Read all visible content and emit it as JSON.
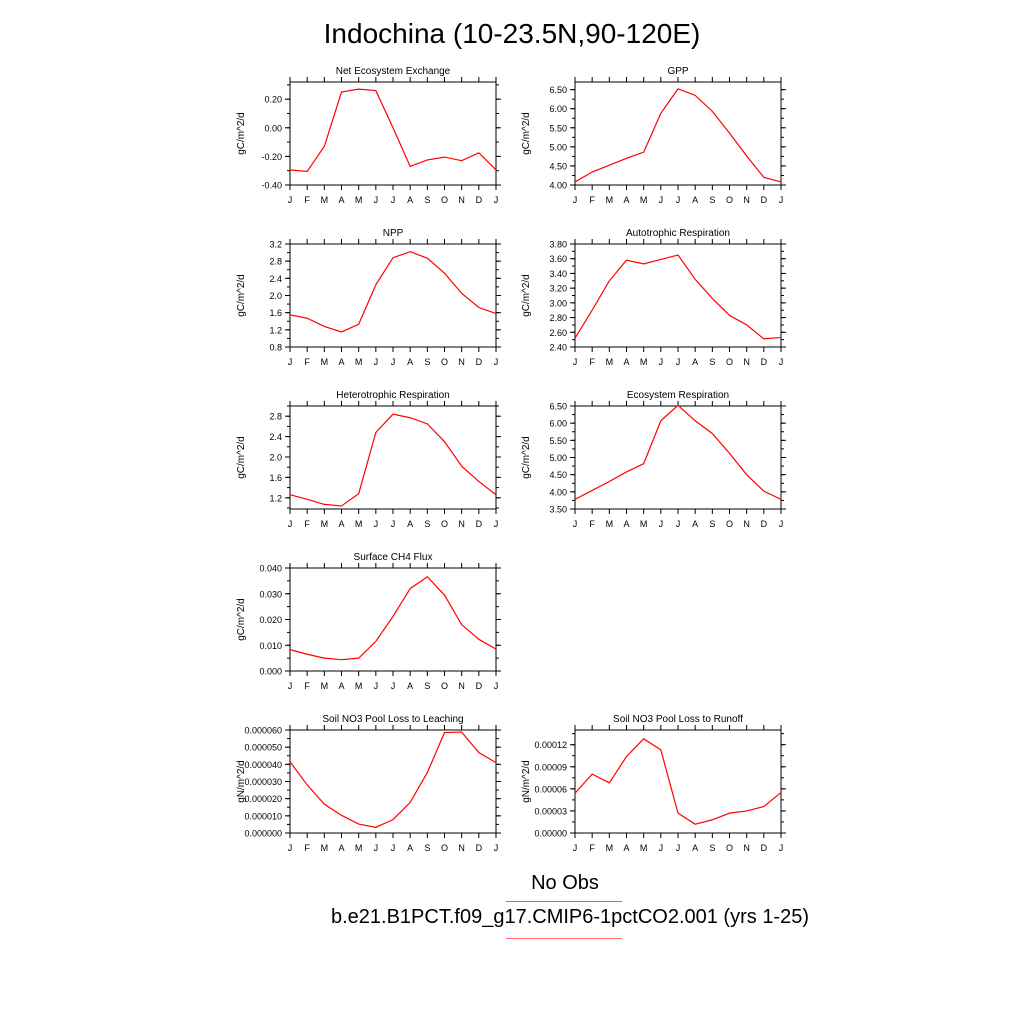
{
  "title": "Indochina (10-23.5N,90-120E)",
  "legend": {
    "obs_label": "No Obs",
    "obs_color": "#7b7bff",
    "model_label": "b.e21.B1PCT.f09_g17.CMIP6-1pctCO2.001 (yrs 1-25)",
    "model_color": "#ff0000"
  },
  "chart_data": [
    {
      "type": "line",
      "title": "Net Ecosystem Exchange",
      "ylabel": "gC/m^2/d",
      "categories": [
        "J",
        "F",
        "M",
        "A",
        "M",
        "J",
        "J",
        "A",
        "S",
        "O",
        "N",
        "D",
        "J"
      ],
      "ylim": [
        -0.4,
        0.32
      ],
      "yticks": [
        -0.4,
        -0.2,
        0.0,
        0.2
      ],
      "ytick_labels": [
        "-0.40",
        "-0.20",
        "0.00",
        "0.20"
      ],
      "series": [
        {
          "values": [
            -0.295,
            -0.305,
            -0.13,
            0.25,
            0.27,
            0.26,
            0.0,
            -0.27,
            -0.225,
            -0.205,
            -0.23,
            -0.175,
            -0.295
          ]
        }
      ]
    },
    {
      "type": "line",
      "title": "GPP",
      "ylabel": "gC/m^2/d",
      "categories": [
        "J",
        "F",
        "M",
        "A",
        "M",
        "J",
        "J",
        "A",
        "S",
        "O",
        "N",
        "D",
        "J"
      ],
      "ylim": [
        4.0,
        6.7
      ],
      "yticks": [
        4.0,
        4.5,
        5.0,
        5.5,
        6.0,
        6.5
      ],
      "ytick_labels": [
        "4.00",
        "4.50",
        "5.00",
        "5.50",
        "6.00",
        "6.50"
      ],
      "series": [
        {
          "values": [
            4.08,
            4.34,
            4.52,
            4.7,
            4.86,
            5.88,
            6.52,
            6.35,
            5.93,
            5.36,
            4.76,
            4.2,
            4.08
          ]
        }
      ]
    },
    {
      "type": "line",
      "title": "NPP",
      "ylabel": "gC/m^2/d",
      "categories": [
        "J",
        "F",
        "M",
        "A",
        "M",
        "J",
        "J",
        "A",
        "S",
        "O",
        "N",
        "D",
        "J"
      ],
      "ylim": [
        0.8,
        3.2
      ],
      "yticks": [
        0.8,
        1.2,
        1.6,
        2.0,
        2.4,
        2.8,
        3.2
      ],
      "ytick_labels": [
        "0.8",
        "1.2",
        "1.6",
        "2.0",
        "2.4",
        "2.8",
        "3.2"
      ],
      "series": [
        {
          "values": [
            1.55,
            1.47,
            1.28,
            1.15,
            1.33,
            2.25,
            2.88,
            3.02,
            2.87,
            2.52,
            2.05,
            1.72,
            1.58
          ]
        }
      ]
    },
    {
      "type": "line",
      "title": "Autotrophic Respiration",
      "ylabel": "gC/m^2/d",
      "categories": [
        "J",
        "F",
        "M",
        "A",
        "M",
        "J",
        "J",
        "A",
        "S",
        "O",
        "N",
        "D",
        "J"
      ],
      "ylim": [
        2.4,
        3.8
      ],
      "yticks": [
        2.4,
        2.6,
        2.8,
        3.0,
        3.2,
        3.4,
        3.6,
        3.8
      ],
      "ytick_labels": [
        "2.40",
        "2.60",
        "2.80",
        "3.00",
        "3.20",
        "3.40",
        "3.60",
        "3.80"
      ],
      "series": [
        {
          "values": [
            2.52,
            2.9,
            3.3,
            3.58,
            3.53,
            3.59,
            3.65,
            3.32,
            3.06,
            2.83,
            2.7,
            2.51,
            2.53
          ]
        }
      ]
    },
    {
      "type": "line",
      "title": "Heterotrophic Respiration",
      "ylabel": "gC/m^2/d",
      "categories": [
        "J",
        "F",
        "M",
        "A",
        "M",
        "J",
        "J",
        "A",
        "S",
        "O",
        "N",
        "D",
        "J"
      ],
      "ylim": [
        0.98,
        3.0
      ],
      "yticks": [
        1.2,
        1.6,
        2.0,
        2.4,
        2.8
      ],
      "ytick_labels": [
        "1.2",
        "1.6",
        "2.0",
        "2.4",
        "2.8"
      ],
      "series": [
        {
          "values": [
            1.26,
            1.17,
            1.07,
            1.04,
            1.28,
            2.48,
            2.84,
            2.77,
            2.65,
            2.3,
            1.82,
            1.52,
            1.26
          ]
        }
      ]
    },
    {
      "type": "line",
      "title": "Ecosystem Respiration",
      "ylabel": "gC/m^2/d",
      "categories": [
        "J",
        "F",
        "M",
        "A",
        "M",
        "J",
        "J",
        "A",
        "S",
        "O",
        "N",
        "D",
        "J"
      ],
      "ylim": [
        3.5,
        6.5
      ],
      "yticks": [
        3.5,
        4.0,
        4.5,
        5.0,
        5.5,
        6.0,
        6.5
      ],
      "ytick_labels": [
        "3.50",
        "4.00",
        "4.50",
        "5.00",
        "5.50",
        "6.00",
        "6.50"
      ],
      "series": [
        {
          "values": [
            3.78,
            4.04,
            4.3,
            4.58,
            4.82,
            6.07,
            6.52,
            6.07,
            5.7,
            5.12,
            4.5,
            4.02,
            3.78
          ]
        }
      ]
    },
    {
      "type": "line",
      "title": "Surface CH4 Flux",
      "ylabel": "gC/m^2/d",
      "categories": [
        "J",
        "F",
        "M",
        "A",
        "M",
        "J",
        "J",
        "A",
        "S",
        "O",
        "N",
        "D",
        "J"
      ],
      "ylim": [
        0.0,
        0.04
      ],
      "yticks": [
        0.0,
        0.01,
        0.02,
        0.03,
        0.04
      ],
      "ytick_labels": [
        "0.000",
        "0.010",
        "0.020",
        "0.030",
        "0.040"
      ],
      "series": [
        {
          "values": [
            0.0083,
            0.0065,
            0.005,
            0.0044,
            0.005,
            0.0115,
            0.0212,
            0.032,
            0.0366,
            0.0295,
            0.018,
            0.0123,
            0.0085
          ]
        }
      ]
    },
    {
      "type": "line",
      "title": "Soil NO3 Pool Loss to Leaching",
      "ylabel": "gN/m^2/d",
      "categories": [
        "J",
        "F",
        "M",
        "A",
        "M",
        "J",
        "J",
        "A",
        "S",
        "O",
        "N",
        "D",
        "J"
      ],
      "ylim": [
        0.0,
        6e-05
      ],
      "yticks": [
        0.0,
        1e-05,
        2e-05,
        3e-05,
        4e-05,
        5e-05,
        6e-05
      ],
      "ytick_labels": [
        "0.000000",
        "0.000010",
        "0.000020",
        "0.000030",
        "0.000040",
        "0.000050",
        "0.000060"
      ],
      "series": [
        {
          "values": [
            4.15e-05,
            2.8e-05,
            1.68e-05,
            1.03e-05,
            5.2e-06,
            3.3e-06,
            7.8e-06,
            1.78e-05,
            3.52e-05,
            5.85e-05,
            5.88e-05,
            4.68e-05,
            4.1e-05
          ]
        }
      ]
    },
    {
      "type": "line",
      "title": "Soil NO3 Pool Loss to Runoff",
      "ylabel": "gN/m^2/d",
      "categories": [
        "J",
        "F",
        "M",
        "A",
        "M",
        "J",
        "J",
        "A",
        "S",
        "O",
        "N",
        "D",
        "J"
      ],
      "ylim": [
        0.0,
        0.00014
      ],
      "yticks": [
        0.0,
        3e-05,
        6e-05,
        9e-05,
        0.00012
      ],
      "ytick_labels": [
        "0.00000",
        "0.00003",
        "0.00006",
        "0.00009",
        "0.00012"
      ],
      "series": [
        {
          "values": [
            5.4e-05,
            8e-05,
            6.8e-05,
            0.000104,
            0.000128,
            0.000113,
            2.7e-05,
            1.2e-05,
            1.8e-05,
            2.7e-05,
            3e-05,
            3.6e-05,
            5.5e-05
          ]
        }
      ]
    }
  ]
}
